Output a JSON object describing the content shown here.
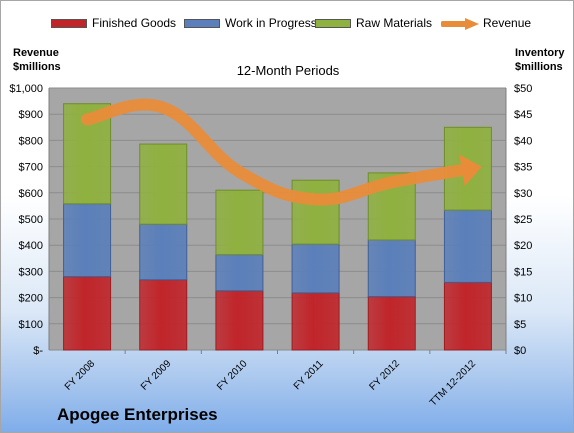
{
  "company": "Apogee Enterprises",
  "colors": {
    "finished": "#c0252a",
    "wip": "#5a7fba",
    "raw": "#8fb13f",
    "revenue": "#e98c3a",
    "plot_bg": "#a6a6a6"
  },
  "chart_data": {
    "type": "bar",
    "stacked": true,
    "title": "12-Month Periods",
    "y_left_title": "Revenue\n$millions",
    "y_right_title": "Inventory\n$millions",
    "categories": [
      "FY 2008",
      "FY 2009",
      "FY 2010",
      "FY 2011",
      "FY 2012",
      "TTM 12-2012"
    ],
    "y_left_ticks": [
      "$-",
      "$100",
      "$200",
      "$300",
      "$400",
      "$500",
      "$600",
      "$700",
      "$800",
      "$900",
      "$1,000"
    ],
    "y_right_ticks": [
      "$0",
      "$5",
      "$10",
      "$15",
      "$20",
      "$25",
      "$30",
      "$35",
      "$40",
      "$45",
      "$50"
    ],
    "ylim_left": [
      0,
      1000
    ],
    "ylim_right": [
      0,
      50
    ],
    "series": [
      {
        "name": "Finished Goods",
        "axis": "right",
        "values": [
          14.0,
          13.4,
          11.3,
          10.9,
          10.2,
          12.9
        ]
      },
      {
        "name": "Work in Progress",
        "axis": "right",
        "values": [
          13.9,
          10.6,
          6.9,
          9.3,
          10.8,
          13.8
        ]
      },
      {
        "name": "Raw Materials",
        "axis": "right",
        "values": [
          19.1,
          15.3,
          12.3,
          12.2,
          12.8,
          15.8
        ]
      },
      {
        "name": "Revenue",
        "axis": "left",
        "type": "line",
        "values": [
          880,
          925,
          680,
          575,
          640,
          690
        ]
      }
    ],
    "legend_position": "top",
    "grid": true
  }
}
